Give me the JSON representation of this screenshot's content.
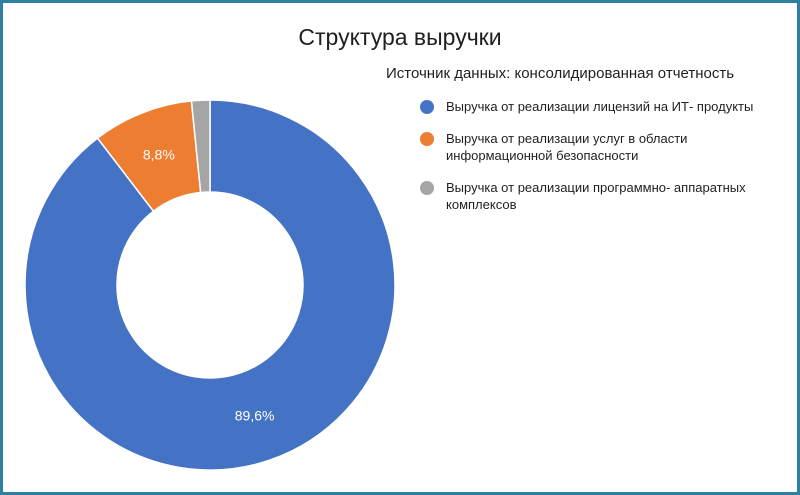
{
  "chart_data": {
    "type": "pie",
    "variant": "donut",
    "title": "Структура выручки",
    "subtitle": "Источник данных: консолидированная отчетность",
    "legend_position": "right",
    "slices": [
      {
        "name": "Выручка от реализации лицензий на ИТ- продукты",
        "value": 89.6,
        "label": "89,6%",
        "color": "#4472c4"
      },
      {
        "name": "Выручка от реализации услуг в области информационной безопасности",
        "value": 8.8,
        "label": "8,8%",
        "color": "#ed7d31"
      },
      {
        "name": "Выручка от реализации программно- аппаратных комплексов",
        "value": 1.6,
        "label": "",
        "color": "#a5a5a5"
      }
    ]
  }
}
